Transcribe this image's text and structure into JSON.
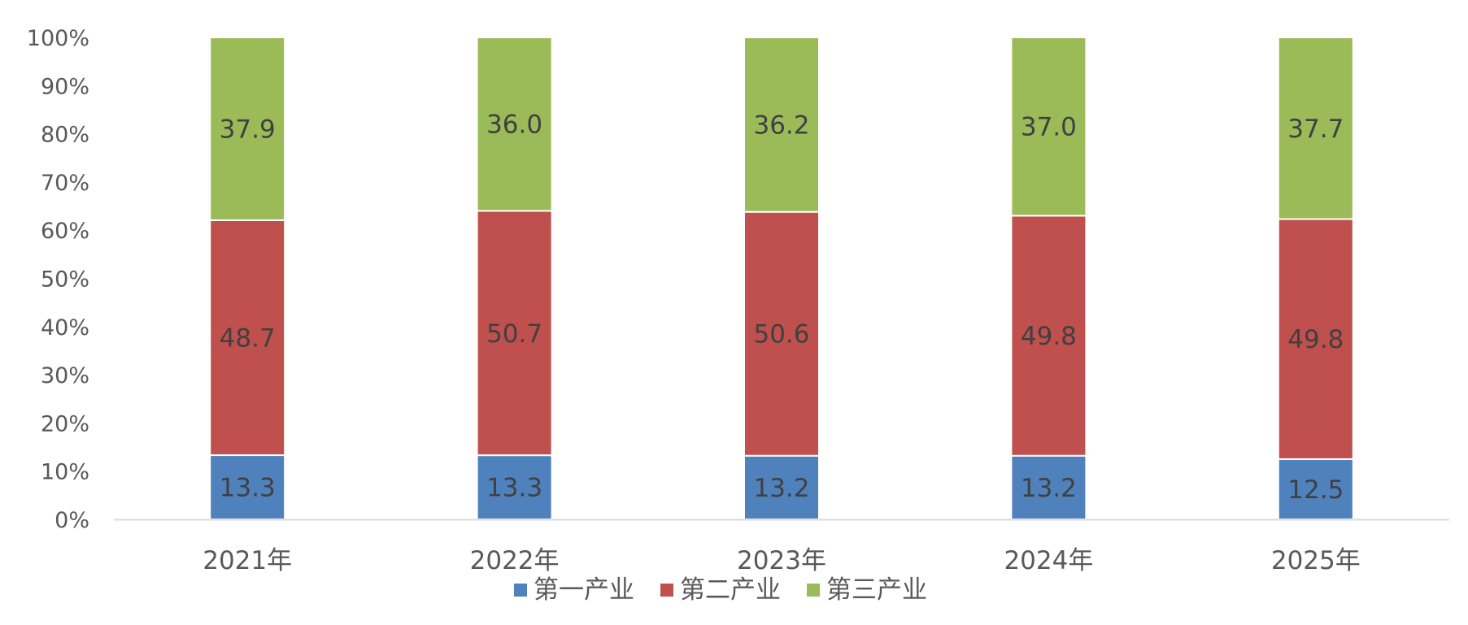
{
  "chart_data": {
    "type": "bar",
    "stacked": "percent",
    "categories": [
      "2021年",
      "2022年",
      "2023年",
      "2024年",
      "2025年"
    ],
    "series": [
      {
        "name": "第一产业",
        "values": [
          13.3,
          13.3,
          13.2,
          13.2,
          12.5
        ],
        "color": "#4f81bd"
      },
      {
        "name": "第二产业",
        "values": [
          48.7,
          50.7,
          50.6,
          49.8,
          49.8
        ],
        "color": "#c0504d"
      },
      {
        "name": "第三产业",
        "values": [
          37.9,
          36.0,
          36.2,
          37.0,
          37.7
        ],
        "color": "#9bbb59"
      }
    ],
    "ylim": [
      0,
      100
    ],
    "yticks": [
      "0%",
      "10%",
      "20%",
      "30%",
      "40%",
      "50%",
      "60%",
      "70%",
      "80%",
      "90%",
      "100%"
    ],
    "grid": false,
    "legend_position": "bottom",
    "data_labels": [
      "13.3",
      "13.3",
      "13.2",
      "13.2",
      "12.5",
      "48.7",
      "50.7",
      "50.6",
      "49.8",
      "49.8",
      "37.9",
      "36.0",
      "36.2",
      "37.0",
      "37.7"
    ]
  }
}
